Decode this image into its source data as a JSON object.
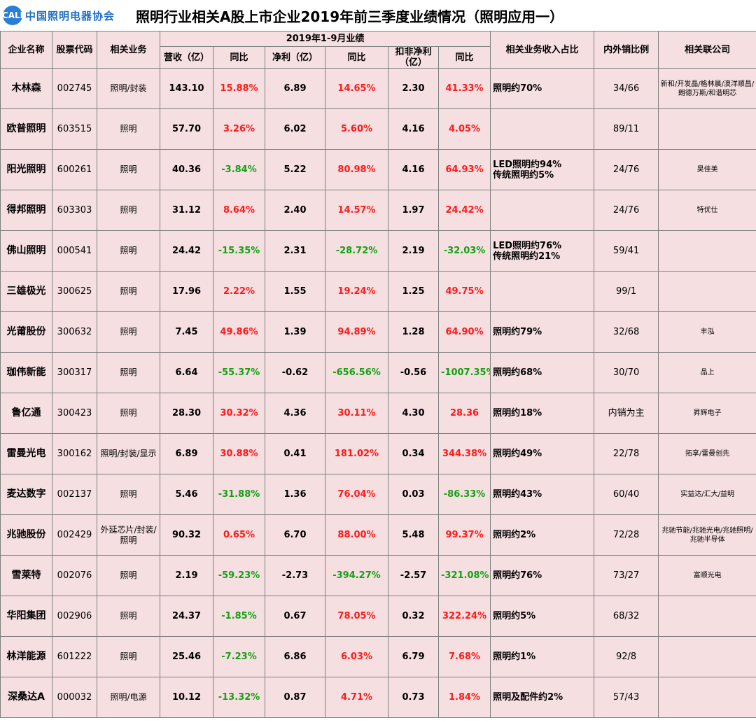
{
  "header": {
    "logo_mark": "CALI",
    "logo_text": "中国照明电器协会",
    "title": "照明行业相关A股上市企业2019年前三季度业绩情况（照明应用一）"
  },
  "columns": {
    "company": "企业名称",
    "code": "股票代码",
    "business": "相关业务",
    "period": "2019年1-9月业绩",
    "revenue": "营收（亿）",
    "revenue_yoy": "同比",
    "net_profit": "净利（亿）",
    "net_profit_yoy": "同比",
    "deducted_profit": "扣非净利（亿）",
    "deducted_yoy": "同比",
    "revenue_share": "相关业务收入占比",
    "domestic_export_ratio": "内外销比例",
    "related_companies": "相关联公司"
  },
  "rows": [
    {
      "company": "木林森",
      "code": "002745",
      "business": "照明/封装",
      "revenue": "143.10",
      "revenue_yoy": "15.88%",
      "net_profit": "6.89",
      "net_profit_yoy": "14.65%",
      "deducted": "2.30",
      "deducted_yoy": "41.33%",
      "share": [
        "照明约70%"
      ],
      "ratio": "34/66",
      "related": "新和/开发晶/格林晨/澳洋顺昌/朗德万斯/和谐明芯",
      "colors": {
        "revenue_yoy": "red",
        "net_profit_yoy": "red",
        "deducted_yoy": "red"
      }
    },
    {
      "company": "欧普照明",
      "code": "603515",
      "business": "照明",
      "revenue": "57.70",
      "revenue_yoy": "3.26%",
      "net_profit": "6.02",
      "net_profit_yoy": "5.60%",
      "deducted": "4.16",
      "deducted_yoy": "4.05%",
      "share": [],
      "ratio": "89/11",
      "related": "",
      "colors": {
        "revenue_yoy": "red",
        "net_profit_yoy": "red",
        "deducted_yoy": "red"
      }
    },
    {
      "company": "阳光照明",
      "code": "600261",
      "business": "照明",
      "revenue": "40.36",
      "revenue_yoy": "-3.84%",
      "net_profit": "5.22",
      "net_profit_yoy": "80.98%",
      "deducted": "4.16",
      "deducted_yoy": "64.93%",
      "share": [
        "LED照明约94%",
        "传统照明约5%"
      ],
      "ratio": "24/76",
      "related": "昊佳美",
      "colors": {
        "revenue_yoy": "green",
        "net_profit_yoy": "red",
        "deducted_yoy": "red"
      }
    },
    {
      "company": "得邦照明",
      "code": "603303",
      "business": "照明",
      "revenue": "31.12",
      "revenue_yoy": "8.64%",
      "net_profit": "2.40",
      "net_profit_yoy": "14.57%",
      "deducted": "1.97",
      "deducted_yoy": "24.42%",
      "share": [],
      "ratio": "24/76",
      "related": "特优仕",
      "colors": {
        "revenue_yoy": "red",
        "net_profit_yoy": "red",
        "deducted_yoy": "red"
      }
    },
    {
      "company": "佛山照明",
      "code": "000541",
      "business": "照明",
      "revenue": "24.42",
      "revenue_yoy": "-15.35%",
      "net_profit": "2.31",
      "net_profit_yoy": "-28.72%",
      "deducted": "2.19",
      "deducted_yoy": "-32.03%",
      "share": [
        "LED照明约76%",
        "传统照明约21%"
      ],
      "ratio": "59/41",
      "related": "",
      "colors": {
        "revenue_yoy": "green",
        "net_profit_yoy": "green",
        "deducted_yoy": "green"
      }
    },
    {
      "company": "三雄极光",
      "code": "300625",
      "business": "照明",
      "revenue": "17.96",
      "revenue_yoy": "2.22%",
      "net_profit": "1.55",
      "net_profit_yoy": "19.24%",
      "deducted": "1.25",
      "deducted_yoy": "49.75%",
      "share": [],
      "ratio": "99/1",
      "related": "",
      "colors": {
        "revenue_yoy": "red",
        "net_profit_yoy": "red",
        "deducted_yoy": "red"
      }
    },
    {
      "company": "光莆股份",
      "code": "300632",
      "business": "照明",
      "revenue": "7.45",
      "revenue_yoy": "49.86%",
      "net_profit": "1.39",
      "net_profit_yoy": "94.89%",
      "deducted": "1.28",
      "deducted_yoy": "64.90%",
      "share": [
        "照明约79%"
      ],
      "ratio": "32/68",
      "related": "丰泓",
      "colors": {
        "revenue_yoy": "red",
        "net_profit_yoy": "red",
        "deducted_yoy": "red"
      }
    },
    {
      "company": "珈伟新能",
      "code": "300317",
      "business": "照明",
      "revenue": "6.64",
      "revenue_yoy": "-55.37%",
      "net_profit": "-0.62",
      "net_profit_yoy": "-656.56%",
      "deducted": "-0.56",
      "deducted_yoy": "-1007.35%",
      "share": [
        "照明约68%"
      ],
      "ratio": "30/70",
      "related": "品上",
      "colors": {
        "revenue_yoy": "green",
        "net_profit_yoy": "green",
        "deducted_yoy": "green"
      }
    },
    {
      "company": "鲁亿通",
      "code": "300423",
      "business": "照明",
      "revenue": "28.30",
      "revenue_yoy": "30.32%",
      "net_profit": "4.36",
      "net_profit_yoy": "30.11%",
      "deducted": "4.30",
      "deducted_yoy": "28.36",
      "share": [
        "照明约18%"
      ],
      "ratio": "内销为主",
      "related": "昇辉电子",
      "colors": {
        "revenue_yoy": "red",
        "net_profit_yoy": "red",
        "deducted_yoy": "red"
      }
    },
    {
      "company": "雷曼光电",
      "code": "300162",
      "business": "照明/封装/显示",
      "revenue": "6.89",
      "revenue_yoy": "30.88%",
      "net_profit": "0.41",
      "net_profit_yoy": "181.02%",
      "deducted": "0.34",
      "deducted_yoy": "344.38%",
      "share": [
        "照明约49%"
      ],
      "ratio": "22/78",
      "related": "拓享/雷曼创先",
      "colors": {
        "revenue_yoy": "red",
        "net_profit_yoy": "red",
        "deducted_yoy": "red"
      }
    },
    {
      "company": "麦达数字",
      "code": "002137",
      "business": "照明",
      "revenue": "5.46",
      "revenue_yoy": "-31.88%",
      "net_profit": "1.36",
      "net_profit_yoy": "76.04%",
      "deducted": "0.03",
      "deducted_yoy": "-86.33%",
      "share": [
        "照明约43%"
      ],
      "ratio": "60/40",
      "related": "实益达/汇大/益明",
      "colors": {
        "revenue_yoy": "green",
        "net_profit_yoy": "red",
        "deducted_yoy": "green"
      }
    },
    {
      "company": "兆驰股份",
      "code": "002429",
      "business": "外延芯片/封装/照明",
      "revenue": "90.32",
      "revenue_yoy": "0.65%",
      "net_profit": "6.70",
      "net_profit_yoy": "88.00%",
      "deducted": "5.48",
      "deducted_yoy": "99.37%",
      "share": [
        "照明约2%"
      ],
      "ratio": "72/28",
      "related": "兆驰节能/兆驰光电/兆驰照明/兆驰半导体",
      "colors": {
        "revenue_yoy": "red",
        "net_profit_yoy": "red",
        "deducted_yoy": "red"
      }
    },
    {
      "company": "雪莱特",
      "code": "002076",
      "business": "照明",
      "revenue": "2.19",
      "revenue_yoy": "-59.23%",
      "net_profit": "-2.73",
      "net_profit_yoy": "-394.27%",
      "deducted": "-2.57",
      "deducted_yoy": "-321.08%",
      "share": [
        "照明约76%"
      ],
      "ratio": "73/27",
      "related": "富顺光电",
      "colors": {
        "revenue_yoy": "green",
        "net_profit_yoy": "green",
        "deducted_yoy": "green"
      }
    },
    {
      "company": "华阳集团",
      "code": "002906",
      "business": "照明",
      "revenue": "24.37",
      "revenue_yoy": "-1.85%",
      "net_profit": "0.67",
      "net_profit_yoy": "78.05%",
      "deducted": "0.32",
      "deducted_yoy": "322.24%",
      "share": [
        "照明约5%"
      ],
      "ratio": "68/32",
      "related": "",
      "colors": {
        "revenue_yoy": "green",
        "net_profit_yoy": "red",
        "deducted_yoy": "red"
      }
    },
    {
      "company": "林洋能源",
      "code": "601222",
      "business": "照明",
      "revenue": "25.46",
      "revenue_yoy": "-7.23%",
      "net_profit": "6.86",
      "net_profit_yoy": "6.03%",
      "deducted": "6.79",
      "deducted_yoy": "7.68%",
      "share": [
        "照明约1%"
      ],
      "ratio": "92/8",
      "related": "",
      "colors": {
        "revenue_yoy": "green",
        "net_profit_yoy": "red",
        "deducted_yoy": "red"
      }
    },
    {
      "company": "深桑达A",
      "code": "000032",
      "business": "照明/电源",
      "revenue": "10.12",
      "revenue_yoy": "-13.32%",
      "net_profit": "0.87",
      "net_profit_yoy": "4.71%",
      "deducted": "0.73",
      "deducted_yoy": "1.84%",
      "share": [
        "照明及配件约2%"
      ],
      "ratio": "57/43",
      "related": "",
      "colors": {
        "revenue_yoy": "green",
        "net_profit_yoy": "red",
        "deducted_yoy": "red"
      }
    }
  ]
}
